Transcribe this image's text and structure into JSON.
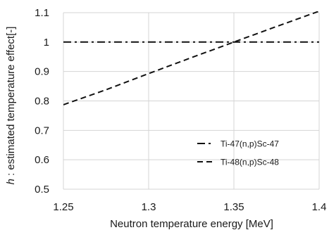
{
  "chart_data": {
    "type": "line",
    "title": "",
    "xlabel": "Neutron temperature energy [MeV]",
    "ylabel_italic": "h",
    "ylabel_rest": " : estimated temperature effect[-]",
    "xlim": [
      1.25,
      1.4
    ],
    "ylim": [
      0.5,
      1.1
    ],
    "x_ticks": [
      "1.25",
      "1.3",
      "1.35",
      "1.4"
    ],
    "y_ticks": [
      "0.5",
      "0.6",
      "0.7",
      "0.8",
      "0.9",
      "1",
      "1.1"
    ],
    "grid": true,
    "legend_position": "bottom-right",
    "series": [
      {
        "name": "Ti-47(n,p)Sc-47",
        "style": "dash-dot",
        "color": "#111111",
        "x": [
          1.25,
          1.275,
          1.3,
          1.325,
          1.35,
          1.375,
          1.4
        ],
        "y": [
          1.0,
          1.0,
          1.0,
          1.0,
          1.0,
          1.0,
          1.0
        ]
      },
      {
        "name": "Ti-48(n,p)Sc-48",
        "style": "dashed",
        "color": "#111111",
        "x": [
          1.25,
          1.275,
          1.3,
          1.325,
          1.35,
          1.375,
          1.4
        ],
        "y": [
          0.787,
          0.838,
          0.893,
          0.947,
          1.0,
          1.053,
          1.105
        ]
      }
    ]
  }
}
